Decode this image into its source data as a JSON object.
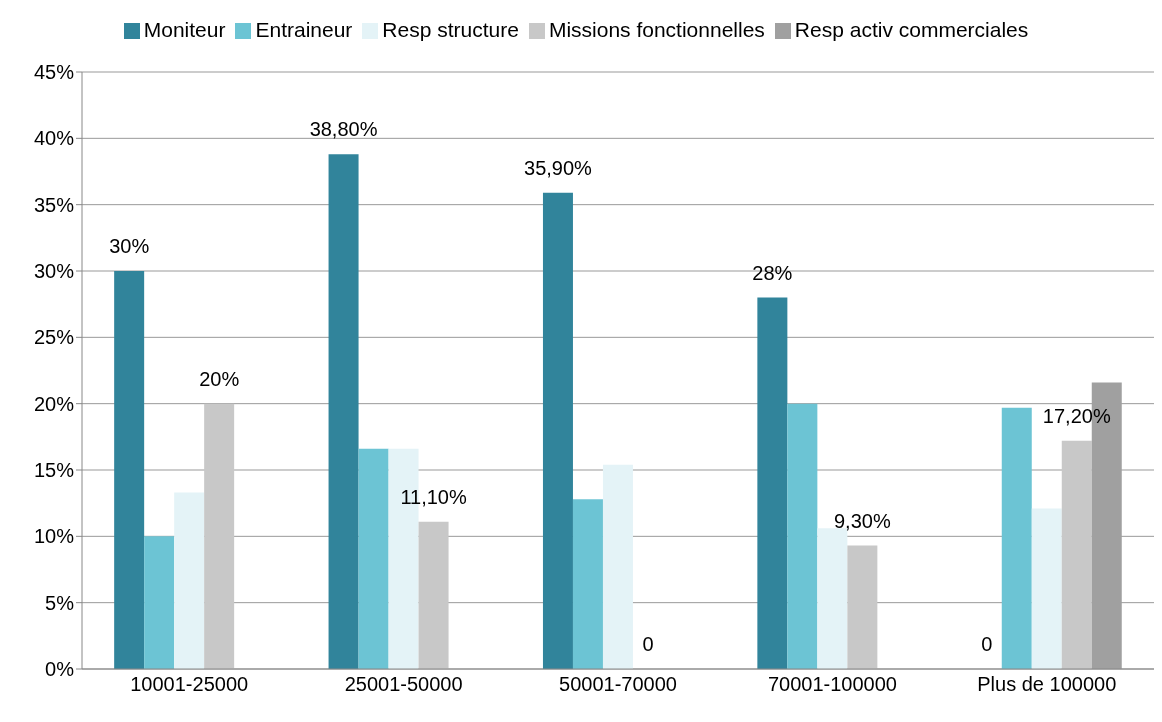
{
  "chart_data": {
    "type": "bar",
    "categories": [
      "10001-25000",
      "25001-50000",
      "50001-70000",
      "70001-100000",
      "Plus de 100000"
    ],
    "series": [
      {
        "name": "Moniteur",
        "color": "#31849b",
        "values": [
          30,
          38.8,
          35.9,
          28,
          0
        ],
        "value_labels": [
          "30%",
          "38,80%",
          "35,90%",
          "28%",
          "0"
        ]
      },
      {
        "name": "Entraineur",
        "color": "#6cc4d4",
        "values": [
          10,
          16.6,
          12.8,
          20,
          19.7
        ]
      },
      {
        "name": "Resp structure",
        "color": "#e4f3f7",
        "values": [
          13.3,
          16.6,
          15.4,
          10.6,
          12.1
        ]
      },
      {
        "name": "Missions fonctionnelles",
        "color": "#c8c8c8",
        "values": [
          20,
          11.1,
          0,
          9.3,
          17.2
        ],
        "value_labels": [
          "20%",
          "11,10%",
          "0",
          "9,30%",
          "17,20%"
        ]
      },
      {
        "name": "Resp activ commerciales",
        "color": "#a0a0a0",
        "values": [
          null,
          null,
          null,
          null,
          21.6
        ]
      }
    ],
    "ylim": [
      0,
      45
    ],
    "yticks": [
      {
        "value": 0,
        "label": "0%"
      },
      {
        "value": 5,
        "label": "5%"
      },
      {
        "value": 10,
        "label": "10%"
      },
      {
        "value": 15,
        "label": "15%"
      },
      {
        "value": 20,
        "label": "20%"
      },
      {
        "value": 25,
        "label": "25%"
      },
      {
        "value": 30,
        "label": "30%"
      },
      {
        "value": 35,
        "label": "35%"
      },
      {
        "value": 40,
        "label": "40%"
      },
      {
        "value": 45,
        "label": "45%"
      }
    ],
    "grid": "y",
    "legend": "top"
  }
}
